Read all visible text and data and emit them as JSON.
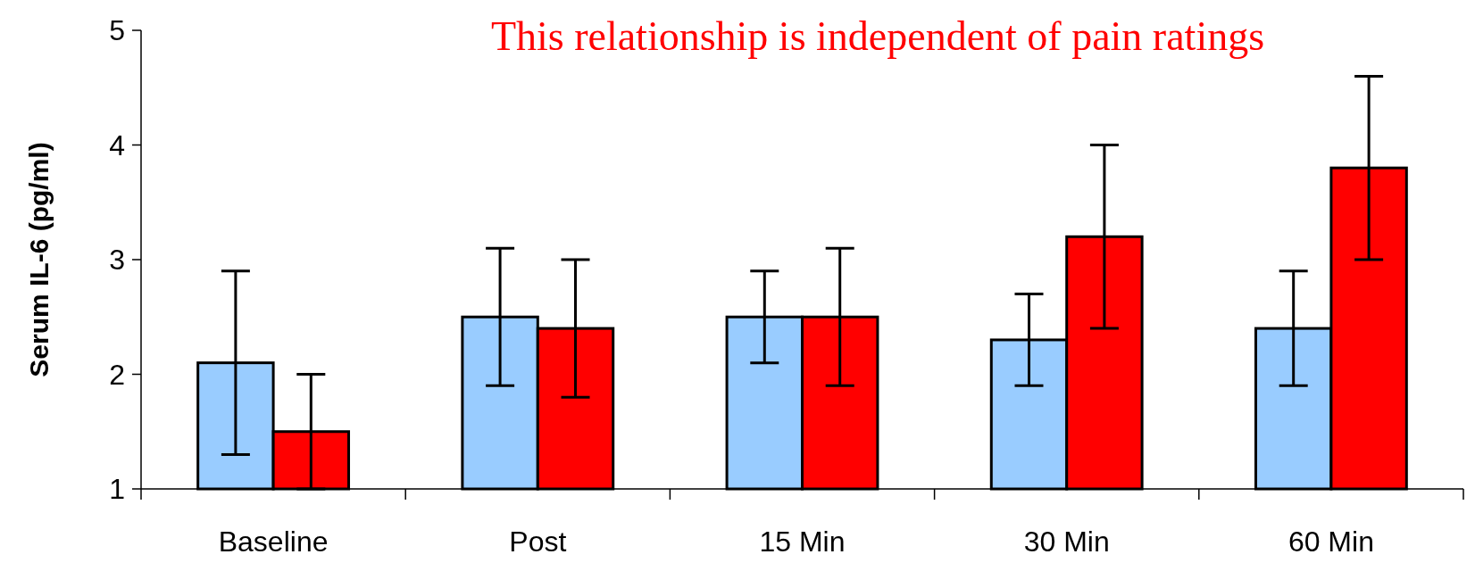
{
  "chart_data": {
    "type": "bar",
    "title": "This relationship is independent of pain ratings",
    "ylabel": "Serum IL-6 (pg/ml)",
    "categories": [
      "Baseline",
      "Post",
      "15 Min",
      "30 Min",
      "60 Min"
    ],
    "series": [
      {
        "color": "#99ccff",
        "values": [
          2.1,
          2.5,
          2.5,
          2.3,
          2.4
        ],
        "errors": [
          [
            1.3,
            2.9
          ],
          [
            1.9,
            3.1
          ],
          [
            2.1,
            2.9
          ],
          [
            1.9,
            2.7
          ],
          [
            1.9,
            2.9
          ]
        ]
      },
      {
        "color": "#ff0000",
        "values": [
          1.5,
          2.4,
          2.5,
          3.2,
          3.8
        ],
        "errors": [
          [
            1.0,
            2.0
          ],
          [
            1.8,
            3.0
          ],
          [
            1.9,
            3.1
          ],
          [
            2.4,
            4.0
          ],
          [
            3.0,
            4.6
          ]
        ]
      }
    ],
    "ylim": [
      1,
      5
    ],
    "yticks": [
      1,
      2,
      3,
      4,
      5
    ],
    "grid": false
  }
}
